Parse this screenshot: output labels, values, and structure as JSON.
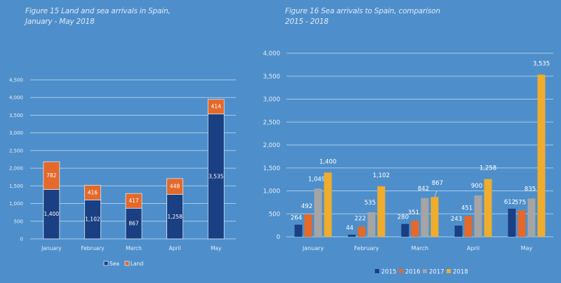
{
  "colors": {
    "background": "#4e8fcb",
    "grid": "#a9c8e6",
    "sea": "#1a3f82",
    "land": "#e4692a",
    "y2015": "#1a3f82",
    "y2016": "#e4692a",
    "y2017": "#a5a5a5",
    "y2018": "#f0ac2c"
  },
  "figure15": {
    "title_line1": "Figure 15 Land and sea arrivals in Spain,",
    "title_line2": "January - May 2018"
  },
  "figure16": {
    "title_line1": "Figure 16 Sea arrivals to Spain, comparison",
    "title_line2": "2015 - 2018"
  },
  "chart_data": [
    {
      "type": "bar",
      "stacked": true,
      "title": "Figure 15 Land and sea arrivals in Spain, January - May 2018",
      "xlabel": "",
      "ylabel": "",
      "categories": [
        "January",
        "February",
        "March",
        "April",
        "May"
      ],
      "series": [
        {
          "name": "Sea",
          "values": [
            1400,
            1102,
            867,
            1258,
            3535
          ],
          "labels": [
            "1,400",
            "1,102",
            "867",
            "1,258",
            "3,535"
          ]
        },
        {
          "name": "Land",
          "values": [
            782,
            416,
            417,
            448,
            414
          ],
          "labels": [
            "782",
            "416",
            "417",
            "448",
            "414"
          ]
        }
      ],
      "ylim": [
        0,
        4500
      ],
      "yticks": [
        0,
        500,
        1000,
        1500,
        2000,
        2500,
        3000,
        3500,
        4000,
        4500
      ],
      "ytick_labels": [
        "0",
        "500",
        "1,000",
        "1,500",
        "2,000",
        "2,500",
        "3,000",
        "3,500",
        "4,000",
        "4,500"
      ],
      "grid": true,
      "legend": "bottom-center"
    },
    {
      "type": "bar",
      "stacked": false,
      "title": "Figure 16 Sea arrivals to Spain, comparison 2015 - 2018",
      "xlabel": "",
      "ylabel": "",
      "categories": [
        "January",
        "February",
        "March",
        "April",
        "May"
      ],
      "series": [
        {
          "name": "2015",
          "values": [
            264,
            44,
            280,
            243,
            612
          ],
          "labels": [
            "264",
            "44",
            "280",
            "243",
            "612"
          ]
        },
        {
          "name": "2016",
          "values": [
            492,
            222,
            351,
            451,
            575
          ],
          "labels": [
            "492",
            "222",
            "351",
            "451",
            "575"
          ]
        },
        {
          "name": "2017",
          "values": [
            1049,
            535,
            842,
            900,
            835
          ],
          "labels": [
            "1,049",
            "535",
            "842",
            "900",
            "835"
          ]
        },
        {
          "name": "2018",
          "values": [
            1400,
            1102,
            867,
            1258,
            3535
          ],
          "labels": [
            "1,400",
            "1,102",
            "867",
            "1,258",
            "3,535"
          ]
        }
      ],
      "ylim": [
        0,
        4000
      ],
      "yticks": [
        0,
        500,
        1000,
        1500,
        2000,
        2500,
        3000,
        3500,
        4000
      ],
      "ytick_labels": [
        "0",
        "500",
        "1,000",
        "1,500",
        "2,000",
        "2,500",
        "3,000",
        "3,500",
        "4,000"
      ],
      "grid": true,
      "legend": "bottom-center"
    }
  ]
}
